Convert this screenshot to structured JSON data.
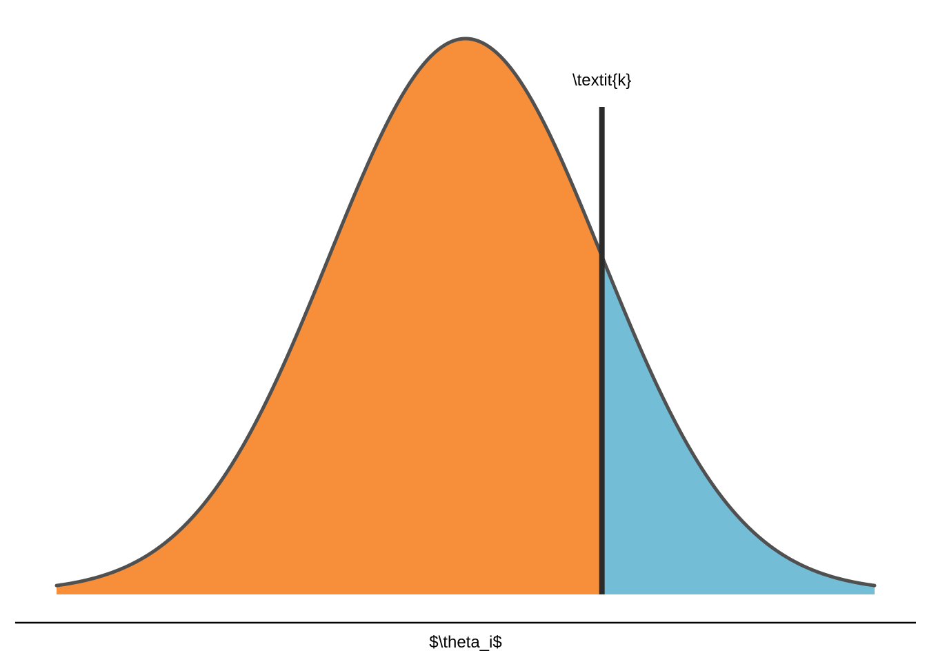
{
  "chart_data": {
    "type": "area",
    "title": "",
    "xlabel": "$\\theta_i$",
    "ylabel": "",
    "distribution": "normal",
    "mean": 0,
    "sd": 1,
    "xlim": [
      -3,
      3
    ],
    "threshold": {
      "x": 1,
      "label": "\\textit{k}"
    },
    "regions": [
      {
        "range": [
          -3,
          1
        ],
        "color": "#F68E3A"
      },
      {
        "range": [
          1,
          3
        ],
        "color": "#73BED6"
      }
    ],
    "curve_color": "#505050",
    "threshold_color": "#2B2B2B",
    "axis_line_color": "#000000",
    "grid": false,
    "legend": "none"
  }
}
